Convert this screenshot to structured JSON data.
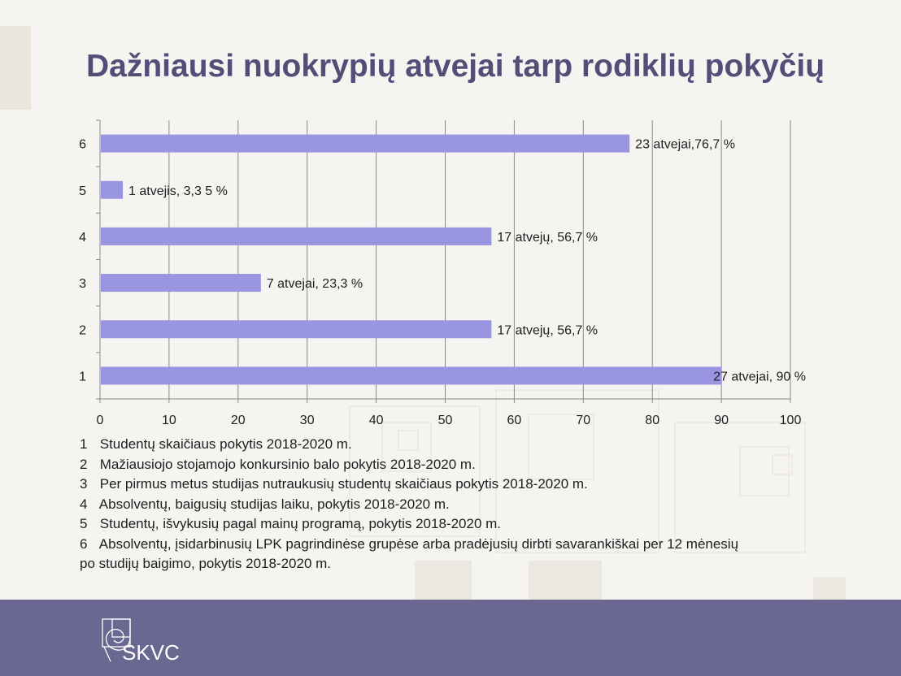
{
  "slide": {
    "title": "Dažniausi nuokrypių atvejai tarp rodiklių pokyčių",
    "logo_text": "SKVC",
    "colors": {
      "title": "#524e78",
      "bar": "#9a95e0",
      "footer": "#6a6890",
      "background": "#f6f4f1"
    }
  },
  "chart_data": {
    "type": "bar",
    "orientation": "horizontal",
    "categories": [
      "1",
      "2",
      "3",
      "4",
      "5",
      "6"
    ],
    "values": [
      90,
      56.7,
      23.3,
      56.7,
      3.3,
      76.7
    ],
    "data_labels": [
      "27 atvejai, 90 %",
      "17 atvejų, 56,7 %",
      "7 atvejai, 23,3 %",
      "17 atvejų, 56,7 %",
      "1 atvejis, 3,3 5 %",
      "23 atvejai,76,7 %"
    ],
    "xlim": [
      0,
      100
    ],
    "x_ticks": [
      "0",
      "10",
      "20",
      "30",
      "40",
      "50",
      "60",
      "70",
      "80",
      "90",
      "100"
    ],
    "grid": "vertical",
    "title": "",
    "xlabel": "",
    "ylabel": ""
  },
  "legend": {
    "items": [
      {
        "num": "1",
        "text": "Studentų skaičiaus pokytis 2018-2020 m."
      },
      {
        "num": "2",
        "text": "Mažiausiojo stojamojo konkursinio balo pokytis 2018-2020 m."
      },
      {
        "num": "3",
        "text": "Per pirmus metus studijas nutraukusių studentų skaičiaus pokytis 2018-2020 m."
      },
      {
        "num": "4",
        "text": "Absolventų, baigusių studijas laiku, pokytis 2018-2020 m."
      },
      {
        "num": "5",
        "text": "Studentų, išvykusių pagal mainų programą, pokytis 2018-2020 m."
      },
      {
        "num": "6",
        "text": "Absolventų, įsidarbinusių LPK pagrindinėse grupėse arba pradėjusių dirbti savarankiškai per 12 mėnesių"
      }
    ],
    "continuation": "po studijų baigimo, pokytis 2018-2020 m."
  }
}
